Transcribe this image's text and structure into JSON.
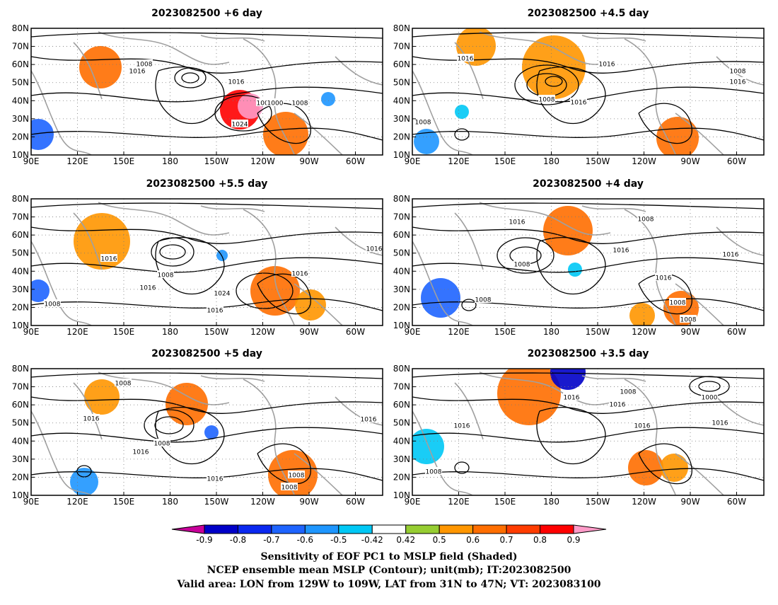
{
  "chart_data": {
    "type": "heatmap",
    "panels": [
      {
        "title": "2023082500  +6 day",
        "contour_labels": [
          "1008",
          "1016",
          "1016",
          "1008",
          "1024",
          "1008",
          "1000"
        ]
      },
      {
        "title": "2023082500  +4.5 day",
        "contour_labels": [
          "1016",
          "1016",
          "1008",
          "1016",
          "1008",
          "1016",
          "1008"
        ]
      },
      {
        "title": "2023082500  +5.5 day",
        "contour_labels": [
          "1016",
          "1008",
          "1016",
          "1024",
          "1016",
          "1016",
          "1008",
          "1016"
        ]
      },
      {
        "title": "2023082500  +4 day",
        "contour_labels": [
          "1016",
          "1008",
          "1008",
          "1016",
          "1008",
          "1016",
          "1008",
          "1008",
          "1016"
        ]
      },
      {
        "title": "2023082500  +5 day",
        "contour_labels": [
          "1008",
          "1016",
          "1008",
          "1016",
          "1016",
          "1008",
          "1008",
          "1016"
        ]
      },
      {
        "title": "2023082500  +3.5 day",
        "contour_labels": [
          "1016",
          "1008",
          "1016",
          "1016",
          "1016",
          "1008",
          "1000",
          "1016"
        ]
      }
    ],
    "x_ticks": [
      "90E",
      "120E",
      "150E",
      "180",
      "150W",
      "120W",
      "90W",
      "60W"
    ],
    "y_ticks": [
      "10N",
      "20N",
      "30N",
      "40N",
      "50N",
      "60N",
      "70N",
      "80N"
    ],
    "colorbar": {
      "labels": [
        "-0.9",
        "-0.8",
        "-0.7",
        "-0.6",
        "-0.5",
        "-0.42",
        "0.42",
        "0.5",
        "0.6",
        "0.7",
        "0.8",
        "0.9"
      ],
      "colors": [
        "#c8009a",
        "#0000c8",
        "#0a28f0",
        "#1e64ff",
        "#1e96ff",
        "#00c8f5",
        "#ffffff",
        "#96cd32",
        "#ff9600",
        "#ff6e00",
        "#ff3c00",
        "#ff0000",
        "#ff9bc8"
      ]
    },
    "footer": [
      "Sensitivity of EOF PC1 to MSLP field (Shaded)",
      "NCEP ensemble mean MSLP (Contour); unit(mb); IT:2023082500",
      "Valid area: LON from 129W to 109W, LAT from 31N to 47N; VT: 2023083100"
    ]
  }
}
